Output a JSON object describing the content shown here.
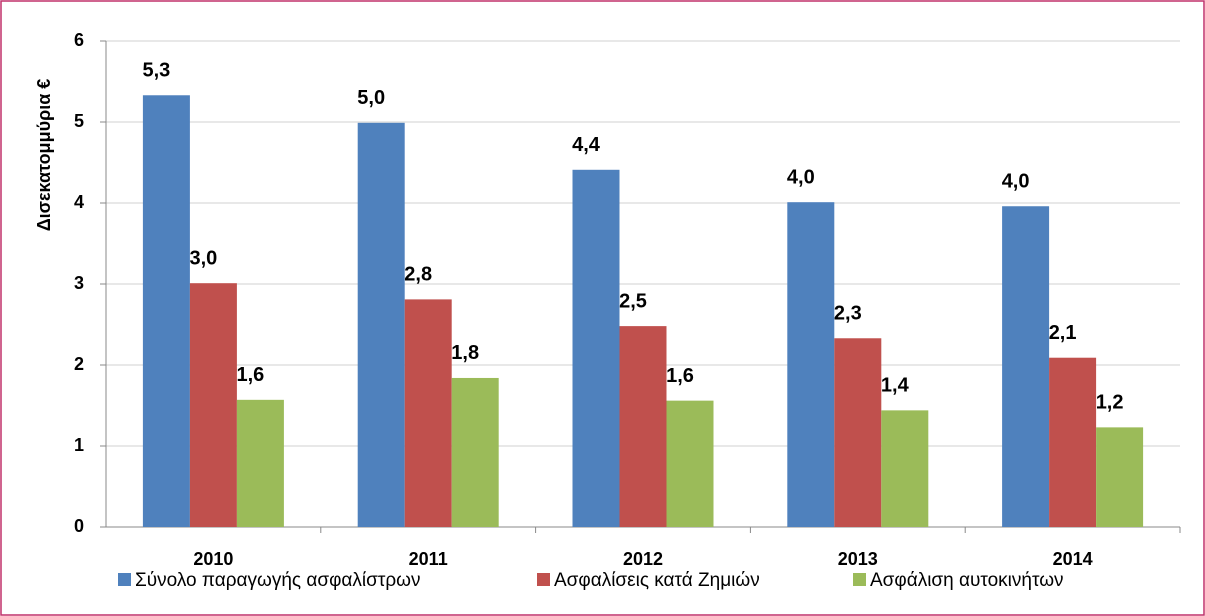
{
  "chart_data": {
    "type": "bar",
    "y_label": "Δισεκατομμύρια €",
    "categories": [
      "2010",
      "2011",
      "2012",
      "2013",
      "2014"
    ],
    "series": [
      {
        "name": "Σύνολο παραγωγής ασφαλίστρων",
        "color": "#4f81bd",
        "values": [
          5.33,
          4.99,
          4.41,
          4.01,
          3.96
        ],
        "value_labels": [
          "5,3",
          "5,0",
          "4,4",
          "4,0",
          "4,0"
        ]
      },
      {
        "name": "Ασφαλίσεις κατά Ζημιών",
        "color": "#c0504d",
        "values": [
          3.01,
          2.81,
          2.48,
          2.33,
          2.09
        ],
        "value_labels": [
          "3,0",
          "2,8",
          "2,5",
          "2,3",
          "2,1"
        ]
      },
      {
        "name": "Ασφάλιση αυτοκινήτων",
        "color": "#9bbb59",
        "values": [
          1.57,
          1.84,
          1.56,
          1.44,
          1.23
        ],
        "value_labels": [
          "1,6",
          "1,8",
          "1,6",
          "1,4",
          "1,2"
        ]
      }
    ],
    "ylim": [
      0,
      6
    ],
    "yticks": [
      0,
      1,
      2,
      3,
      4,
      5,
      6
    ],
    "grid": true,
    "legend": "bottom"
  }
}
